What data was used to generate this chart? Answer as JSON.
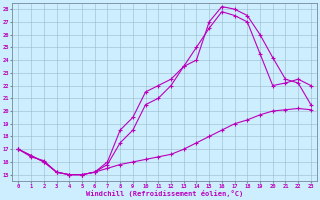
{
  "xlabel": "Windchill (Refroidissement éolien,°C)",
  "bg_color": "#cceeff",
  "line_color": "#bb00bb",
  "grid_color": "#99bbcc",
  "xmin": 0,
  "xmax": 23,
  "ymin": 15,
  "ymax": 28,
  "line1_x": [
    0,
    1,
    2,
    3,
    4,
    5,
    6,
    7,
    8,
    9,
    10,
    11,
    12,
    13,
    14,
    15,
    16,
    17,
    18,
    19,
    20,
    21,
    22,
    23
  ],
  "line1_y": [
    17.0,
    16.4,
    16.1,
    15.2,
    15.0,
    15.0,
    15.2,
    15.5,
    15.8,
    16.0,
    16.2,
    16.4,
    16.6,
    17.0,
    17.5,
    18.0,
    18.5,
    19.0,
    19.3,
    19.7,
    20.0,
    20.1,
    20.2,
    20.1
  ],
  "line2_x": [
    0,
    1,
    2,
    3,
    4,
    5,
    6,
    7,
    8,
    9,
    10,
    11,
    12,
    13,
    14,
    15,
    16,
    17,
    18,
    19,
    20,
    21,
    22,
    23
  ],
  "line2_y": [
    17.0,
    16.5,
    16.0,
    15.2,
    15.0,
    15.0,
    15.2,
    16.0,
    18.5,
    19.5,
    21.5,
    22.0,
    22.5,
    23.5,
    24.0,
    27.0,
    28.2,
    28.0,
    27.5,
    26.0,
    24.2,
    22.5,
    22.2,
    20.5
  ],
  "line3_x": [
    0,
    1,
    2,
    3,
    4,
    5,
    6,
    7,
    8,
    9,
    10,
    11,
    12,
    13,
    14,
    15,
    16,
    17,
    18,
    19,
    20,
    21,
    22,
    23
  ],
  "line3_y": [
    17.0,
    16.5,
    16.0,
    15.2,
    15.0,
    15.0,
    15.2,
    15.8,
    17.5,
    18.5,
    20.5,
    21.0,
    22.0,
    23.5,
    25.0,
    26.5,
    27.8,
    27.5,
    27.0,
    24.5,
    22.0,
    22.2,
    22.5,
    22.0
  ],
  "yticks": [
    15,
    16,
    17,
    18,
    19,
    20,
    21,
    22,
    23,
    24,
    25,
    26,
    27,
    28
  ],
  "xticks": [
    0,
    1,
    2,
    3,
    4,
    5,
    6,
    7,
    8,
    9,
    10,
    11,
    12,
    13,
    14,
    15,
    16,
    17,
    18,
    19,
    20,
    21,
    22,
    23
  ]
}
